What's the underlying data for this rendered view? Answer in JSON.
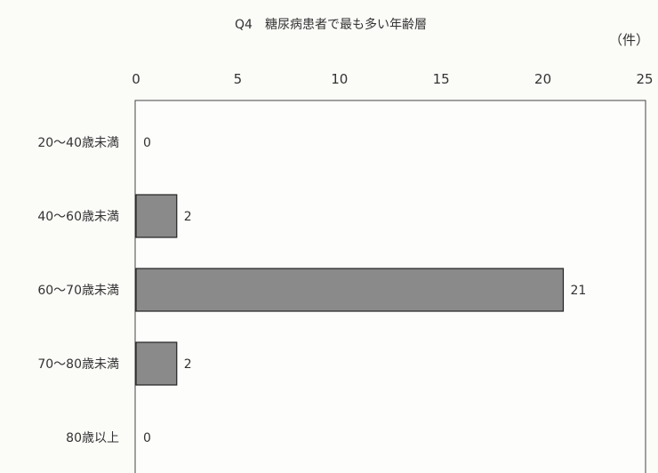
{
  "chart_data": {
    "type": "bar",
    "orientation": "horizontal",
    "title": "Q4　糖尿病患者で最も多い年齢層",
    "unit_label": "（件）",
    "categories": [
      "20〜40歳未満",
      "40〜60歳未満",
      "60〜70歳未満",
      "70〜80歳未満",
      "80歳以上"
    ],
    "values": [
      0,
      2,
      21,
      2,
      0
    ],
    "xlim": [
      0,
      25
    ],
    "ticks": [
      "0",
      "5",
      "10",
      "15",
      "20",
      "25"
    ],
    "tick_values": [
      0,
      5,
      10,
      15,
      20,
      25
    ],
    "axis_position": "top",
    "grid": false,
    "legend": "none",
    "bar_color": "#8a8a8a"
  }
}
